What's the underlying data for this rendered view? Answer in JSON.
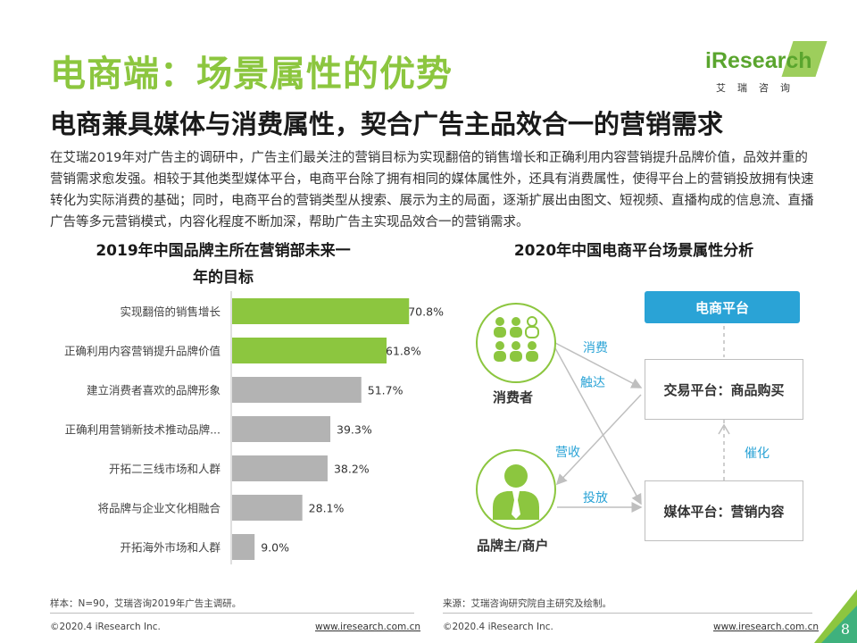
{
  "header": {
    "title": "电商端：场景属性的优势",
    "subtitle": "电商兼具媒体与消费属性，契合广告主品效合一的营销需求",
    "description": "在艾瑞2019年对广告主的调研中，广告主们最关注的营销目标为实现翻倍的销售增长和正确利用内容营销提升品牌价值，品效并重的营销需求愈发强。相较于其他类型媒体平台，电商平台除了拥有相同的媒体属性外，还具有消费属性，使得平台上的营销投放拥有快速转化为实际消费的基础；同时，电商平台的营销类型从搜索、展示为主的局面，逐渐扩展出由图文、短视频、直播构成的信息流、直播广告等多元营销模式，内容化程度不断加深，帮助广告主实现品效合一的营销需求。"
  },
  "logo": {
    "text": "iResearch",
    "sub": "艾瑞咨询"
  },
  "left_chart": {
    "title_line1": "2019年中国品牌主所在营销部未来一",
    "title_line2": "年的目标",
    "highlight_color": "#8cc63f",
    "normal_color": "#b3b3b3"
  },
  "chart_data": {
    "type": "bar",
    "orientation": "horizontal",
    "title": "2019年中国品牌主所在营销部未来一年的目标",
    "categories": [
      "实现翻倍的销售增长",
      "正确利用内容营销提升品牌价值",
      "建立消费者喜欢的品牌形象",
      "正确利用营销新技术推动品牌...",
      "开拓二三线市场和人群",
      "将品牌与企业文化相融合",
      "开拓海外市场和人群"
    ],
    "values": [
      70.8,
      61.8,
      51.7,
      39.3,
      38.2,
      28.1,
      9.0
    ],
    "value_labels": [
      "70.8%",
      "61.8%",
      "51.7%",
      "39.3%",
      "38.2%",
      "28.1%",
      "9.0%"
    ],
    "highlighted": [
      true,
      true,
      false,
      false,
      false,
      false,
      false
    ],
    "xlim": [
      0,
      100
    ]
  },
  "right_diagram": {
    "title": "2020年中国电商平台场景属性分析",
    "platform": "电商平台",
    "trade_box": "交易平台：商品购买",
    "media_box": "媒体平台：营销内容",
    "consumer_label": "消费者",
    "brand_label": "品牌主/商户",
    "arrow_consume": "消费",
    "arrow_reach": "触达",
    "arrow_revenue": "营收",
    "arrow_invest": "投放",
    "arrow_catalyze": "催化",
    "green": "#8cc63f",
    "blue": "#2aa3d6"
  },
  "footer": {
    "sample_note": "样本：N=90，艾瑞咨询2019年广告主调研。",
    "source_note": "来源：艾瑞咨询研究院自主研究及绘制。",
    "copyright_left": "©2020.4 iResearch Inc.",
    "link_left": "www.iresearch.com.cn",
    "copyright_right": "©2020.4 iResearch Inc.",
    "link_right": "www.iresearch.com.cn",
    "page_number": "8"
  }
}
